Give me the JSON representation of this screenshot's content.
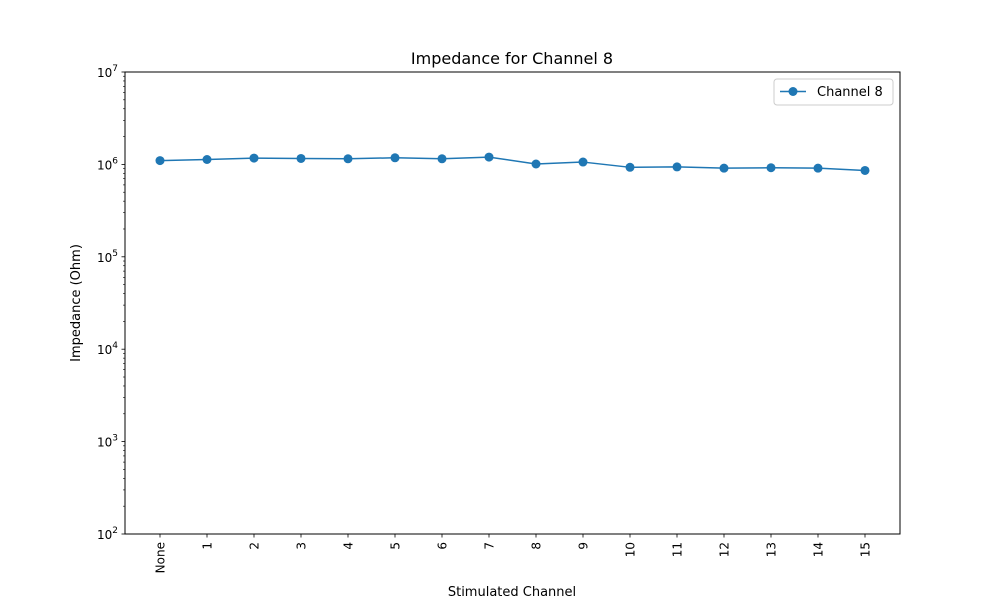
{
  "chart_data": {
    "type": "line",
    "title": "Impedance for Channel 8",
    "xlabel": "Stimulated Channel",
    "ylabel": "Impedance (Ohm)",
    "yscale": "log",
    "ylim": [
      100,
      10000000
    ],
    "y_ticks": [
      {
        "value": 100,
        "base": "10",
        "exp": "2"
      },
      {
        "value": 1000,
        "base": "10",
        "exp": "3"
      },
      {
        "value": 10000,
        "base": "10",
        "exp": "4"
      },
      {
        "value": 100000,
        "base": "10",
        "exp": "5"
      },
      {
        "value": 1000000,
        "base": "10",
        "exp": "6"
      },
      {
        "value": 10000000,
        "base": "10",
        "exp": "7"
      }
    ],
    "categories": [
      "None",
      "1",
      "2",
      "3",
      "4",
      "5",
      "6",
      "7",
      "8",
      "9",
      "10",
      "11",
      "12",
      "13",
      "14",
      "15"
    ],
    "series": [
      {
        "name": "Channel 8",
        "color": "#1f77b4",
        "marker": "circle",
        "values": [
          1100000,
          1130000,
          1170000,
          1160000,
          1150000,
          1180000,
          1150000,
          1200000,
          1010000,
          1060000,
          930000,
          940000,
          910000,
          920000,
          910000,
          860000
        ]
      }
    ],
    "legend": {
      "position": "top-right"
    },
    "grid": false
  }
}
